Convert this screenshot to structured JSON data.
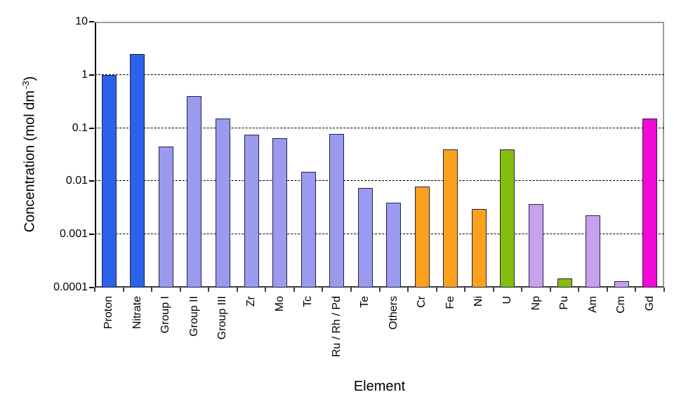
{
  "chart_data": {
    "type": "bar",
    "title": "",
    "xlabel": "Element",
    "ylabel": "Concentration (mol dm⁻³)",
    "y_scale": "log",
    "ylim": [
      0.0001,
      10
    ],
    "grid_style": "dashed",
    "legend": "none",
    "y_ticks": [
      {
        "label": "10",
        "value": 10
      },
      {
        "label": "1",
        "value": 1
      },
      {
        "label": "0.1",
        "value": 0.1
      },
      {
        "label": "0.01",
        "value": 0.01
      },
      {
        "label": "0.001",
        "value": 0.001
      },
      {
        "label": "0.0001",
        "value": 0.0001
      }
    ],
    "gridlines": [
      1,
      0.1,
      0.01,
      0.001
    ],
    "bars": [
      {
        "category": "Proton",
        "value": 1.0,
        "color": "#2a62e8"
      },
      {
        "category": "Nitrate",
        "value": 2.5,
        "color": "#2a62e8"
      },
      {
        "category": "Group I",
        "value": 0.045,
        "color": "#9a9aee"
      },
      {
        "category": "Group II",
        "value": 0.4,
        "color": "#9a9aee"
      },
      {
        "category": "Group III",
        "value": 0.15,
        "color": "#9a9aee"
      },
      {
        "category": "Zr",
        "value": 0.075,
        "color": "#9a9aee"
      },
      {
        "category": "Mo",
        "value": 0.065,
        "color": "#9a9aee"
      },
      {
        "category": "Tc",
        "value": 0.015,
        "color": "#9a9aee"
      },
      {
        "category": "Ru / Rh / Pd",
        "value": 0.078,
        "color": "#9a9aee"
      },
      {
        "category": "Te",
        "value": 0.0075,
        "color": "#9a9aee"
      },
      {
        "category": "Others",
        "value": 0.004,
        "color": "#9a9aee"
      },
      {
        "category": "Cr",
        "value": 0.008,
        "color": "#faa11d"
      },
      {
        "category": "Fe",
        "value": 0.04,
        "color": "#faa11d"
      },
      {
        "category": "Ni",
        "value": 0.003,
        "color": "#faa11d"
      },
      {
        "category": "U",
        "value": 0.04,
        "color": "#85bd0c"
      },
      {
        "category": "Np",
        "value": 0.0037,
        "color": "#c9a0ec"
      },
      {
        "category": "Pu",
        "value": 0.00015,
        "color": "#85bd0c"
      },
      {
        "category": "Am",
        "value": 0.0023,
        "color": "#c9a0ec"
      },
      {
        "category": "Cm",
        "value": 0.00013,
        "color": "#c9a0ec"
      },
      {
        "category": "Gd",
        "value": 0.15,
        "color": "#f208d8"
      }
    ]
  },
  "labels": {
    "xlabel": "Element",
    "ylabel_main": "Concentration (mol dm",
    "ylabel_sup": "-3",
    "ylabel_end": ")"
  },
  "style": {
    "bar_border": "#22224a",
    "frame_gray": "#9c9c9c",
    "axis_color": "#3d3d3d",
    "grid_color": "#000000",
    "background": "#ffffff"
  }
}
